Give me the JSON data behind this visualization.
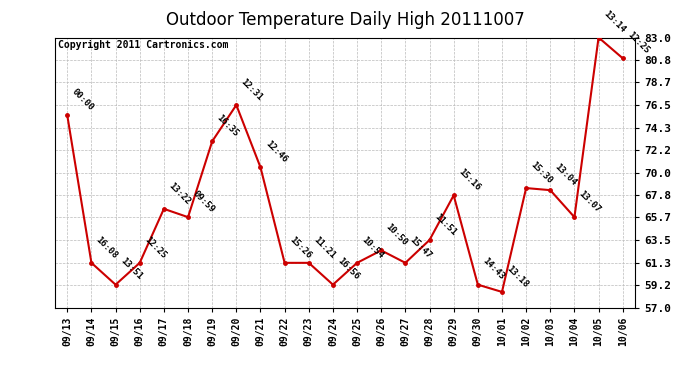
{
  "title": "Outdoor Temperature Daily High 20111007",
  "copyright": "Copyright 2011 Cartronics.com",
  "dates": [
    "09/13",
    "09/14",
    "09/15",
    "09/16",
    "09/17",
    "09/18",
    "09/19",
    "09/20",
    "09/21",
    "09/22",
    "09/23",
    "09/24",
    "09/25",
    "09/26",
    "09/27",
    "09/28",
    "09/29",
    "09/30",
    "10/01",
    "10/02",
    "10/03",
    "10/04",
    "10/05",
    "10/06"
  ],
  "temps": [
    75.5,
    61.3,
    59.2,
    61.3,
    66.5,
    65.7,
    73.0,
    76.5,
    70.5,
    61.3,
    61.3,
    59.2,
    61.3,
    62.5,
    61.3,
    63.5,
    67.8,
    59.2,
    58.5,
    68.5,
    68.3,
    65.7,
    83.0,
    81.0
  ],
  "times": [
    "00:00",
    "16:08",
    "13:51",
    "12:25",
    "13:22",
    "09:59",
    "16:35",
    "12:31",
    "12:46",
    "15:26",
    "11:21",
    "16:56",
    "10:54",
    "10:50",
    "15:47",
    "11:51",
    "15:16",
    "14:43",
    "13:18",
    "15:30",
    "13:04",
    "13:07",
    "13:14",
    "12:25"
  ],
  "line_color": "#cc0000",
  "marker_color": "#cc0000",
  "bg_color": "#ffffff",
  "grid_color": "#bbbbbb",
  "text_color": "#000000",
  "ylim_min": 57.0,
  "ylim_max": 83.0,
  "yticks": [
    57.0,
    59.2,
    61.3,
    63.5,
    65.7,
    67.8,
    70.0,
    72.2,
    74.3,
    76.5,
    78.7,
    80.8,
    83.0
  ],
  "title_fontsize": 12,
  "annotation_fontsize": 6.5,
  "copyright_fontsize": 7,
  "tick_fontsize": 8,
  "xtick_fontsize": 7
}
